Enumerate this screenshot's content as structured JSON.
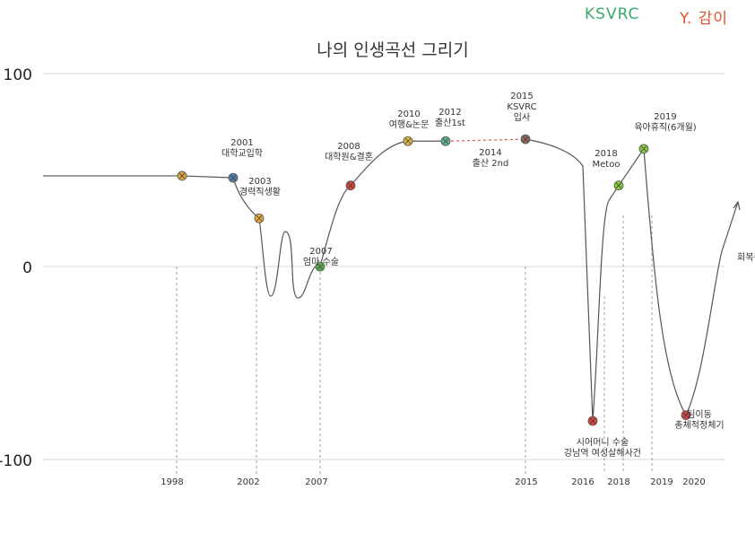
{
  "header": {
    "org": "KSVRC",
    "author": "Y. 감이",
    "org_color": "#3aa86b",
    "author_color": "#e0522e"
  },
  "chart_data": {
    "type": "line",
    "title": "나의 인생곡선 그리기",
    "ylim": [
      -100,
      100
    ],
    "yticks": [
      100,
      0,
      -100
    ],
    "grid": true,
    "points": [
      {
        "year": 1998,
        "y": 47,
        "label": "",
        "color": "#e8a83a"
      },
      {
        "year": 2001,
        "y": 46,
        "label": "2001\n대학교입학",
        "color": "#4f7fa8"
      },
      {
        "year": 2003,
        "y": 25,
        "label": "2003\n경력직생활",
        "color": "#e8a83a"
      },
      {
        "year": 2007,
        "y": 0,
        "label": "2007\n엄마 수술",
        "color": "#58b04c"
      },
      {
        "year": 2008,
        "y": 42,
        "label": "2008\n대학원&결혼",
        "color": "#d8433a"
      },
      {
        "year": 2010,
        "y": 65,
        "label": "2010\n여행&논문",
        "color": "#d9b83a"
      },
      {
        "year": 2012,
        "y": 65,
        "label": "2012\n출산1st",
        "color": "#5cb48a"
      },
      {
        "year": 2015,
        "y": 66,
        "label": "2015\nKSVRC\n입사",
        "color": "#8a6a5a"
      },
      {
        "year": 2016,
        "y": -80,
        "label": "시어머니 수술\n강남역 여성살해사건",
        "color": "#d8433a"
      },
      {
        "year": 2018,
        "y": 42,
        "label": "2018\nMetoo",
        "color": "#8acb3a"
      },
      {
        "year": 2019,
        "y": 61,
        "label": "2019\n육아휴직(6개월)",
        "color": "#8acb3a"
      },
      {
        "year": 2020,
        "y": -77,
        "label": "팀이동\n총체적정체기",
        "color": "#d8433a"
      }
    ],
    "dashed_segment": {
      "from": 2012,
      "to": 2015,
      "label": "2014\n출산 2nd",
      "color": "#e05a5a"
    },
    "end_arrow_label": "회복중",
    "x_tick_labels": [
      "1998",
      "2002",
      "2007",
      "2015",
      "2016",
      "2018",
      "2019",
      "2020"
    ]
  }
}
